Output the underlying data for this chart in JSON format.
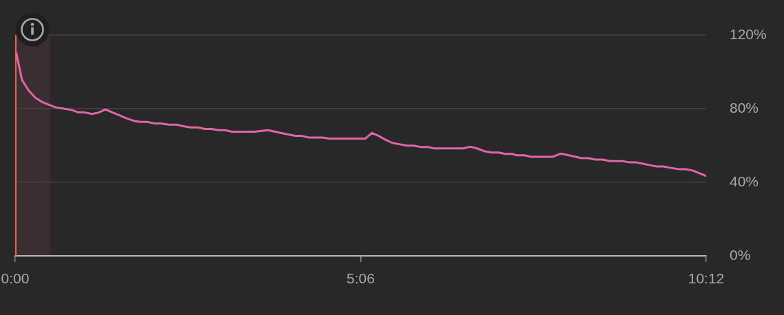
{
  "chart_data": {
    "type": "line",
    "x": [
      1,
      6,
      12,
      18,
      24,
      30,
      36,
      43,
      50,
      56,
      62,
      68,
      74,
      80,
      86,
      92,
      98,
      105,
      111,
      117,
      123,
      129,
      136,
      143,
      149,
      155,
      162,
      168,
      174,
      180,
      186,
      192,
      212,
      224,
      235,
      248,
      254,
      260,
      272,
      278,
      310,
      316,
      322,
      328,
      334,
      340,
      347,
      353,
      359,
      365,
      371,
      397,
      403,
      409,
      416,
      422,
      428,
      434,
      440,
      444,
      451,
      457,
      476,
      483,
      491,
      501,
      508,
      514,
      520,
      527,
      538,
      544,
      550,
      556,
      562,
      568,
      574,
      580,
      588,
      594,
      600,
      606,
      612
    ],
    "series": [
      {
        "color": "#e066a5",
        "values": [
          110.4,
          95.7,
          89.8,
          85.9,
          83.6,
          82.1,
          80.7,
          80.0,
          79.3,
          78.0,
          77.9,
          77.1,
          77.9,
          79.6,
          78.0,
          76.5,
          74.9,
          73.4,
          72.8,
          72.8,
          72.0,
          72.0,
          71.3,
          71.3,
          70.5,
          69.8,
          69.8,
          69.0,
          69.0,
          68.3,
          68.3,
          67.5,
          67.5,
          68.3,
          66.8,
          65.2,
          65.2,
          64.3,
          64.3,
          63.7,
          63.7,
          66.8,
          65.2,
          63.1,
          61.4,
          60.7,
          59.9,
          59.9,
          59.2,
          59.2,
          58.4,
          58.4,
          59.3,
          58.4,
          56.8,
          56.2,
          56.2,
          55.4,
          55.4,
          54.7,
          54.7,
          53.8,
          53.8,
          55.6,
          54.6,
          53.2,
          53.1,
          52.3,
          52.3,
          51.5,
          51.5,
          50.8,
          50.8,
          50.1,
          49.3,
          48.6,
          48.6,
          47.9,
          47.1,
          47.1,
          46.4,
          44.9,
          43.4
        ]
      }
    ],
    "xlim": [
      0,
      612
    ],
    "xticks": [
      {
        "value": 0,
        "label": "0:00"
      },
      {
        "value": 306,
        "label": "5:06"
      },
      {
        "value": 612,
        "label": "10:12"
      }
    ],
    "ylim": [
      0,
      120
    ],
    "yticks": [
      {
        "value": 0,
        "label": "0%"
      },
      {
        "value": 40,
        "label": "40%"
      },
      {
        "value": 80,
        "label": "80%"
      },
      {
        "value": 120,
        "label": "120%"
      }
    ],
    "grid": "y",
    "marker": "none",
    "line_style": "solid",
    "ref_lines": [
      {
        "axis": "x",
        "value": 0,
        "color": "#ef5f58"
      }
    ],
    "bands": [
      {
        "axis": "x",
        "from": 0,
        "to": 31,
        "color": "#3a2e33"
      }
    ]
  }
}
